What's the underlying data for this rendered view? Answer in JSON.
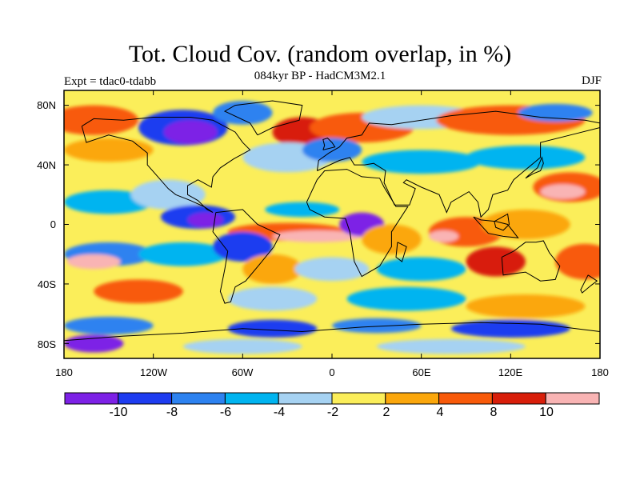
{
  "title": "Tot. Cloud Cov. (random overlap, in %)",
  "subtitle": "084kyr BP - HadCM3M2.1",
  "experiment": "Expt = tdac0-tdabb",
  "season": "DJF",
  "map": {
    "type": "filled contour map",
    "projection": "cylindrical equidistant",
    "lon_range": [
      -180,
      180
    ],
    "lat_range": [
      -90,
      90
    ],
    "lat_ticks": [
      "80N",
      "40N",
      "0",
      "40S",
      "80S"
    ],
    "lon_ticks": [
      "180",
      "120W",
      "60W",
      "0",
      "60E",
      "120E",
      "180"
    ]
  },
  "colorbar": {
    "colors": [
      "#7d21e6",
      "#1e3cf0",
      "#2d82f0",
      "#00b4f0",
      "#a6d2f2",
      "#fbee5a",
      "#fba70c",
      "#f85a0a",
      "#d81e0a",
      "#f9b4b4"
    ],
    "labels": [
      "-10",
      "-8",
      "-6",
      "-4",
      "-2",
      "2",
      "4",
      "8",
      "10"
    ]
  }
}
